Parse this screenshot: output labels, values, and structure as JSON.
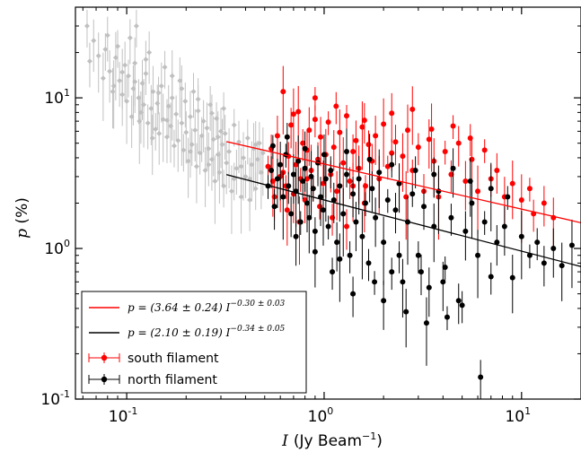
{
  "chart_data": {
    "type": "scatter",
    "x_scale": "log",
    "y_scale": "log",
    "xlim": [
      0.055,
      20
    ],
    "ylim": [
      0.1,
      40
    ],
    "xlabel_var": "I",
    "xlabel_unit": "(Jy Beam",
    "xlabel_exp": "−1",
    "xlabel_close": ")",
    "ylabel_var": "p",
    "ylabel_unit": " (%)",
    "x_ticks": [
      {
        "value": 0.1,
        "base": "10",
        "exp": "-1"
      },
      {
        "value": 1,
        "base": "10",
        "exp": "0"
      },
      {
        "value": 10,
        "base": "10",
        "exp": "1"
      }
    ],
    "y_ticks": [
      {
        "value": 0.1,
        "base": "10",
        "exp": "-1"
      },
      {
        "value": 1,
        "base": "10",
        "exp": "0"
      },
      {
        "value": 10,
        "base": "10",
        "exp": "1"
      }
    ],
    "legend_position": "lower-left",
    "fits": [
      {
        "label": "p = (3.64 ± 0.24) I",
        "exp_label": "−0.30 ± 0.03",
        "color": "#ff0000",
        "amplitude": 3.64,
        "index": -0.3,
        "x_range": [
          0.32,
          20
        ]
      },
      {
        "label": "p = (2.10 ± 0.19) I",
        "exp_label": "−0.34 ± 0.05",
        "color": "#000000",
        "amplitude": 2.1,
        "index": -0.34,
        "x_range": [
          0.32,
          20
        ]
      }
    ],
    "series": [
      {
        "name": "",
        "color": "#c0c0c0",
        "marker": "gray-diamond",
        "points": [
          [
            0.063,
            30
          ],
          [
            0.065,
            17.5
          ],
          [
            0.068,
            24
          ],
          [
            0.072,
            19
          ],
          [
            0.076,
            13.5
          ],
          [
            0.078,
            21
          ],
          [
            0.08,
            26
          ],
          [
            0.082,
            15
          ],
          [
            0.085,
            11
          ],
          [
            0.088,
            18.5
          ],
          [
            0.09,
            22
          ],
          [
            0.092,
            13
          ],
          [
            0.095,
            10.5
          ],
          [
            0.098,
            16.5
          ],
          [
            0.1,
            9.5
          ],
          [
            0.102,
            14
          ],
          [
            0.104,
            25
          ],
          [
            0.106,
            7.5
          ],
          [
            0.108,
            11.5
          ],
          [
            0.11,
            17
          ],
          [
            0.112,
            30
          ],
          [
            0.115,
            10
          ],
          [
            0.118,
            8
          ],
          [
            0.12,
            12.5
          ],
          [
            0.122,
            9
          ],
          [
            0.125,
            14.5
          ],
          [
            0.128,
            6.8
          ],
          [
            0.13,
            20
          ],
          [
            0.133,
            8.5
          ],
          [
            0.136,
            11
          ],
          [
            0.14,
            6.2
          ],
          [
            0.143,
            9.2
          ],
          [
            0.146,
            5.8
          ],
          [
            0.15,
            12
          ],
          [
            0.153,
            7.2
          ],
          [
            0.156,
            16
          ],
          [
            0.16,
            5.5
          ],
          [
            0.163,
            8.8
          ],
          [
            0.167,
            6.5
          ],
          [
            0.17,
            10
          ],
          [
            0.174,
            4.8
          ],
          [
            0.178,
            7.8
          ],
          [
            0.182,
            5.2
          ],
          [
            0.186,
            13
          ],
          [
            0.19,
            6.8
          ],
          [
            0.194,
            4.5
          ],
          [
            0.198,
            9.5
          ],
          [
            0.2,
            5.9
          ],
          [
            0.205,
            3.8
          ],
          [
            0.21,
            7.5
          ],
          [
            0.214,
            4.9
          ],
          [
            0.218,
            11
          ],
          [
            0.222,
            6.1
          ],
          [
            0.226,
            3.5
          ],
          [
            0.23,
            8.2
          ],
          [
            0.235,
            4.3
          ],
          [
            0.24,
            5.6
          ],
          [
            0.245,
            7
          ],
          [
            0.25,
            3.3
          ],
          [
            0.255,
            6.3
          ],
          [
            0.26,
            4.6
          ],
          [
            0.265,
            9
          ],
          [
            0.27,
            3.9
          ],
          [
            0.275,
            5.3
          ],
          [
            0.28,
            2.8
          ],
          [
            0.285,
            7.3
          ],
          [
            0.29,
            4.2
          ],
          [
            0.295,
            3.2
          ],
          [
            0.3,
            6
          ],
          [
            0.305,
            4.9
          ],
          [
            0.31,
            2.6
          ],
          [
            0.315,
            5.8
          ],
          [
            0.32,
            3.7
          ],
          [
            0.33,
            4.4
          ],
          [
            0.34,
            2.4
          ],
          [
            0.35,
            6.6
          ],
          [
            0.36,
            3.4
          ],
          [
            0.37,
            5.1
          ],
          [
            0.38,
            2.2
          ],
          [
            0.39,
            4
          ],
          [
            0.4,
            3
          ],
          [
            0.41,
            5.4
          ],
          [
            0.42,
            2.9
          ],
          [
            0.43,
            3.6
          ],
          [
            0.44,
            4.6
          ],
          [
            0.45,
            2.5
          ],
          [
            0.46,
            3.9
          ],
          [
            0.47,
            5
          ],
          [
            0.48,
            3.2
          ],
          [
            0.49,
            4.3
          ],
          [
            0.31,
            8.5
          ],
          [
            0.27,
            7.9
          ],
          [
            0.23,
            9.8
          ],
          [
            0.19,
            11.5
          ],
          [
            0.17,
            14
          ],
          [
            0.145,
            10.8
          ],
          [
            0.125,
            18
          ],
          [
            0.11,
            12.8
          ],
          [
            0.095,
            14.8
          ],
          [
            0.086,
            12
          ],
          [
            0.35,
            2.9
          ],
          [
            0.38,
            3.5
          ],
          [
            0.42,
            2.1
          ],
          [
            0.45,
            4.9
          ],
          [
            0.29,
            5.5
          ],
          [
            0.26,
            3.6
          ],
          [
            0.21,
            4.4
          ],
          [
            0.16,
            7.1
          ],
          [
            0.135,
            5.4
          ],
          [
            0.116,
            7
          ]
        ]
      },
      {
        "name": "south filament",
        "color": "#ff0000",
        "marker": "red-dot",
        "points": [
          [
            0.52,
            3.5
          ],
          [
            0.54,
            4.6
          ],
          [
            0.56,
            2.2
          ],
          [
            0.58,
            5.6
          ],
          [
            0.6,
            3
          ],
          [
            0.62,
            11
          ],
          [
            0.64,
            2.6
          ],
          [
            0.66,
            4.1
          ],
          [
            0.68,
            6.6
          ],
          [
            0.7,
            2.3
          ],
          [
            0.72,
            3.6
          ],
          [
            0.74,
            8.1
          ],
          [
            0.76,
            2.9
          ],
          [
            0.78,
            5
          ],
          [
            0.8,
            2.1
          ],
          [
            0.82,
            4.5
          ],
          [
            0.84,
            6.1
          ],
          [
            0.86,
            3.3
          ],
          [
            0.88,
            2.5
          ],
          [
            0.9,
            7.2
          ],
          [
            0.93,
            3.9
          ],
          [
            0.96,
            5.5
          ],
          [
            0.99,
            2.7
          ],
          [
            1.02,
            4.2
          ],
          [
            1.05,
            6.9
          ],
          [
            1.08,
            3.1
          ],
          [
            1.12,
            4.7
          ],
          [
            1.16,
            2.4
          ],
          [
            1.2,
            5.9
          ],
          [
            1.25,
            3.7
          ],
          [
            1.3,
            7.6
          ],
          [
            1.35,
            2.8
          ],
          [
            1.4,
            4.4
          ],
          [
            1.45,
            5.2
          ],
          [
            1.5,
            3.4
          ],
          [
            1.56,
            6.4
          ],
          [
            1.62,
            2.6
          ],
          [
            1.68,
            4.9
          ],
          [
            1.75,
            3.8
          ],
          [
            1.82,
            5.6
          ],
          [
            1.9,
            2.9
          ],
          [
            2,
            6.7
          ],
          [
            2.1,
            3.5
          ],
          [
            2.2,
            4.3
          ],
          [
            2.3,
            5.1
          ],
          [
            2.4,
            2.7
          ],
          [
            2.5,
            4.1
          ],
          [
            2.65,
            6.1
          ],
          [
            2.8,
            3.3
          ],
          [
            3,
            4.7
          ],
          [
            3.2,
            2.4
          ],
          [
            3.4,
            5.3
          ],
          [
            3.6,
            3.8
          ],
          [
            3.8,
            2.2
          ],
          [
            4.1,
            4.4
          ],
          [
            4.4,
            3.1
          ],
          [
            4.8,
            5
          ],
          [
            5.2,
            2.8
          ],
          [
            5.6,
            3.9
          ],
          [
            6,
            2.4
          ],
          [
            6.5,
            4.5
          ],
          [
            7,
            2.9
          ],
          [
            7.5,
            3.3
          ],
          [
            8.2,
            2.2
          ],
          [
            9,
            2.7
          ],
          [
            10,
            2.1
          ],
          [
            11,
            2.5
          ],
          [
            11.5,
            1.7
          ],
          [
            13,
            2
          ],
          [
            14.5,
            1.6
          ],
          [
            0.65,
            1.8
          ],
          [
            0.75,
            1.5
          ],
          [
            0.95,
            1.9
          ],
          [
            1.1,
            1.6
          ],
          [
            1.3,
            1.4
          ],
          [
            1.6,
            2
          ],
          [
            0.55,
            2.8
          ],
          [
            0.7,
            7.8
          ],
          [
            0.9,
            10
          ],
          [
            1.15,
            8.8
          ],
          [
            1.6,
            7.1
          ],
          [
            2.2,
            7.9
          ],
          [
            2.8,
            8.4
          ],
          [
            3.5,
            6.2
          ],
          [
            4.5,
            6.5
          ],
          [
            5.5,
            5.4
          ],
          [
            0.62,
            3.2
          ],
          [
            0.82,
            2.9
          ],
          [
            1.4,
            2.6
          ],
          [
            2.6,
            2.2
          ]
        ]
      },
      {
        "name": "north filament",
        "color": "#000000",
        "marker": "black-dot",
        "points": [
          [
            0.52,
            2.6
          ],
          [
            0.54,
            3.3
          ],
          [
            0.56,
            1.9
          ],
          [
            0.58,
            2.9
          ],
          [
            0.6,
            3.6
          ],
          [
            0.62,
            2.2
          ],
          [
            0.64,
            4.2
          ],
          [
            0.66,
            2.6
          ],
          [
            0.68,
            1.7
          ],
          [
            0.7,
            3.1
          ],
          [
            0.72,
            2.4
          ],
          [
            0.74,
            3.8
          ],
          [
            0.76,
            1.5
          ],
          [
            0.78,
            2.8
          ],
          [
            0.8,
            3.4
          ],
          [
            0.82,
            2
          ],
          [
            0.84,
            1.6
          ],
          [
            0.86,
            3
          ],
          [
            0.88,
            2.5
          ],
          [
            0.9,
            1.3
          ],
          [
            0.93,
            3.7
          ],
          [
            0.96,
            2.2
          ],
          [
            0.99,
            1.8
          ],
          [
            1.02,
            2.9
          ],
          [
            1.05,
            1.4
          ],
          [
            1.08,
            3.3
          ],
          [
            1.12,
            2.1
          ],
          [
            1.16,
            1.1
          ],
          [
            1.2,
            2.6
          ],
          [
            1.25,
            1.7
          ],
          [
            1.3,
            3.1
          ],
          [
            1.35,
            0.9
          ],
          [
            1.4,
            2.3
          ],
          [
            1.45,
            1.5
          ],
          [
            1.5,
            2.9
          ],
          [
            1.56,
            1.2
          ],
          [
            1.62,
            2
          ],
          [
            1.68,
            0.8
          ],
          [
            1.75,
            2.5
          ],
          [
            1.82,
            1.6
          ],
          [
            1.9,
            3.2
          ],
          [
            2,
            1.1
          ],
          [
            2.1,
            2.1
          ],
          [
            2.2,
            0.7
          ],
          [
            2.3,
            1.8
          ],
          [
            2.4,
            2.7
          ],
          [
            2.5,
            0.6
          ],
          [
            2.65,
            1.5
          ],
          [
            2.8,
            2.3
          ],
          [
            3,
            0.9
          ],
          [
            3.2,
            1.9
          ],
          [
            3.4,
            0.55
          ],
          [
            3.6,
            1.4
          ],
          [
            3.8,
            2.4
          ],
          [
            4.1,
            0.75
          ],
          [
            4.4,
            1.6
          ],
          [
            4.8,
            0.45
          ],
          [
            5.2,
            1.3
          ],
          [
            5.6,
            2
          ],
          [
            6,
            0.9
          ],
          [
            6.5,
            1.5
          ],
          [
            7,
            0.65
          ],
          [
            7.5,
            1.1
          ],
          [
            8.2,
            1.4
          ],
          [
            9,
            0.64
          ],
          [
            10,
            1.2
          ],
          [
            11,
            0.9
          ],
          [
            12,
            1.1
          ],
          [
            13,
            0.8
          ],
          [
            14.5,
            1
          ],
          [
            16,
            0.77
          ],
          [
            18,
            1.05
          ],
          [
            0.55,
            4.8
          ],
          [
            0.65,
            5.5
          ],
          [
            0.8,
            4.6
          ],
          [
            1,
            4.2
          ],
          [
            1.3,
            4.4
          ],
          [
            1.7,
            3.9
          ],
          [
            2.2,
            3.6
          ],
          [
            2.9,
            3.3
          ],
          [
            3.6,
            3.1
          ],
          [
            4.5,
            3.4
          ],
          [
            5.5,
            2.8
          ],
          [
            7,
            2.5
          ],
          [
            8.5,
            2.2
          ],
          [
            1.1,
            0.7
          ],
          [
            1.4,
            0.5
          ],
          [
            2,
            0.45
          ],
          [
            2.6,
            0.38
          ],
          [
            3.3,
            0.32
          ],
          [
            4.2,
            0.35
          ],
          [
            5,
            0.42
          ],
          [
            6.2,
            0.14
          ],
          [
            0.72,
            1.2
          ],
          [
            0.9,
            0.95
          ],
          [
            1.2,
            0.85
          ],
          [
            1.8,
            0.6
          ],
          [
            2.4,
            0.9
          ],
          [
            3.1,
            0.7
          ],
          [
            4,
            0.6
          ]
        ]
      }
    ]
  }
}
